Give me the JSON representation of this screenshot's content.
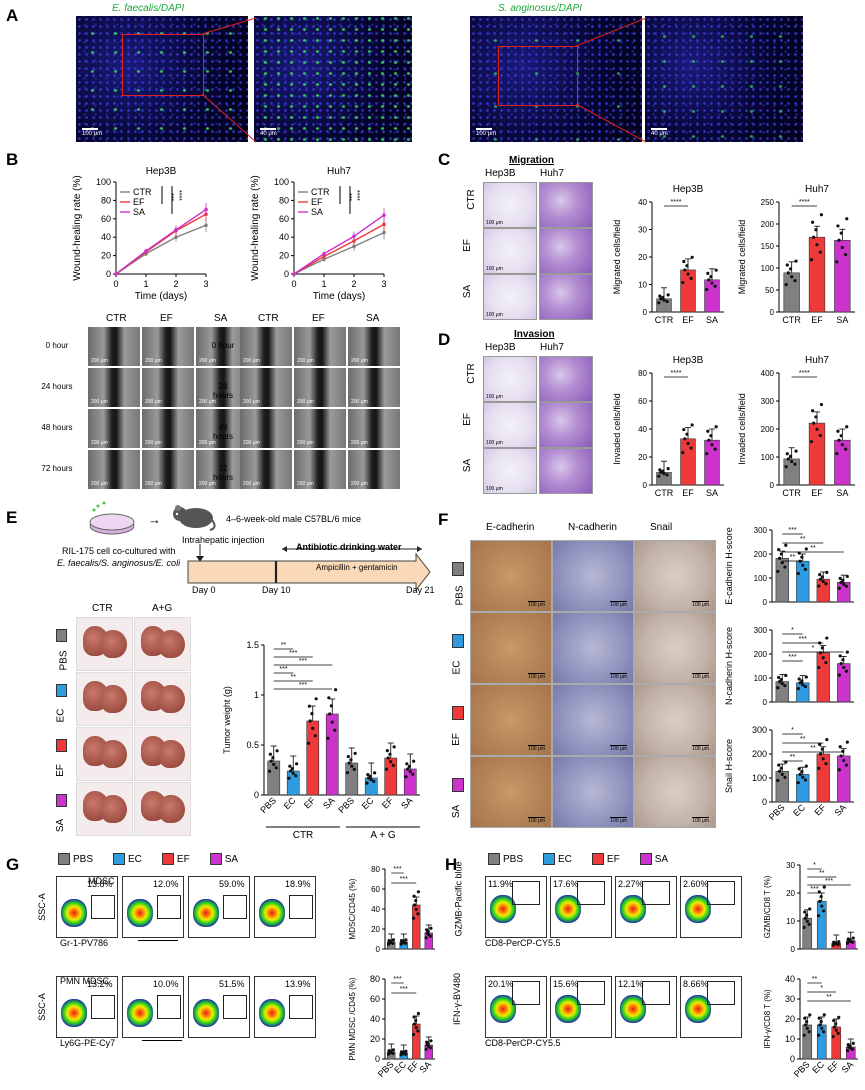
{
  "colors": {
    "ctr": "#808080",
    "ec": "#2f9be0",
    "ef": "#ee3a3a",
    "sa": "#cc33cc",
    "pbs": "#808080"
  },
  "panelA": {
    "letter": "A",
    "left_title": "E. faecalis/DAPI",
    "right_title": "S. anginosus/DAPI",
    "scale_100": "100 μm",
    "scale_40": "40 μm"
  },
  "panelB": {
    "letter": "B",
    "ylabel": "Wound-healing rate (%)",
    "xlabel": "Time (days)",
    "charts": [
      {
        "title": "Hep3B",
        "legend": [
          "CTR",
          "EF",
          "SA"
        ],
        "sig": [
          "***",
          "****"
        ]
      },
      {
        "title": "Huh7",
        "legend": [
          "CTR",
          "EF",
          "SA"
        ],
        "sig": [
          "***",
          "****"
        ]
      }
    ],
    "col_labels": [
      "CTR",
      "EF",
      "SA"
    ],
    "row_labels": [
      "0 hour",
      "24 hours",
      "48 hours",
      "72 hours"
    ],
    "scale": "200 μm"
  },
  "panelC": {
    "letter": "C",
    "heading": "Migration",
    "col_labels": [
      "Hep3B",
      "Huh7"
    ],
    "row_labels": [
      "CTR",
      "EF",
      "SA"
    ],
    "scale": "100 μm",
    "ylabel": "Migrated cells/field"
  },
  "panelD": {
    "letter": "D",
    "heading": "Invasion",
    "col_labels": [
      "Hep3B",
      "Huh7"
    ],
    "row_labels": [
      "CTR",
      "EF",
      "SA"
    ],
    "scale": "100 μm",
    "ylabel": "Invaded cells/field"
  },
  "panelE": {
    "letter": "E",
    "mice": "4–6-week-old male C57BL/6 mice",
    "injection": "Intrahepatic injection",
    "cell1": "RIL-175 cell co-cultured with",
    "cell2": "E. faecalis/S. anginosus/E. coli",
    "water": "Antibiotic drinking water",
    "abx": "Ampicillin + gentamicin",
    "days": [
      "Day 0",
      "Day 10",
      "Day 21"
    ],
    "liver_cols": [
      "CTR",
      "A+G"
    ],
    "liver_rows": [
      "PBS",
      "EC",
      "EF",
      "SA"
    ],
    "ylabel": "Tumor weight (g)",
    "group1": "CTR",
    "group2": "A + G"
  },
  "panelF": {
    "letter": "F",
    "col_labels": [
      "E-cadherin",
      "N-cadherin",
      "Snail"
    ],
    "row_labels": [
      "PBS",
      "EC",
      "EF",
      "SA"
    ],
    "scale": "100 μm"
  },
  "panelG": {
    "letter": "G",
    "legend": [
      "PBS",
      "EC",
      "EF",
      "SA"
    ],
    "gate1": "MDSC",
    "gate2": "PMN MDSC",
    "ssc": "SSC-A",
    "x1": "Gr-1-PV786",
    "x2": "Ly6G-PE-Cy7",
    "pct1": [
      "13.8%",
      "12.0%",
      "59.0%",
      "18.9%"
    ],
    "pct2": [
      "13.2%",
      "10.0%",
      "51.5%",
      "13.9%"
    ]
  },
  "panelH": {
    "letter": "H",
    "legend": [
      "PBS",
      "EC",
      "EF",
      "SA"
    ],
    "y1": "GZMB-Pacific blue",
    "y2": "IFN-γ-BV480",
    "x": "CD8-PerCP-CY5.5",
    "pct1": [
      "11.9%",
      "17.6%",
      "2.27%",
      "2.60%"
    ],
    "pct2": [
      "20.1%",
      "15.6%",
      "12.1%",
      "8.66%"
    ]
  },
  "chart_data": [
    {
      "id": "B-hep3b",
      "type": "line",
      "title": "Hep3B",
      "xlabel": "Time (days)",
      "ylabel": "Wound-healing rate (%)",
      "x": [
        0,
        1,
        2,
        3
      ],
      "xlim": [
        0,
        3
      ],
      "ylim": [
        0,
        100
      ],
      "yticks": [
        0,
        20,
        40,
        60,
        80,
        100
      ],
      "series": [
        {
          "name": "CTR",
          "values": [
            0,
            22,
            40,
            53
          ]
        },
        {
          "name": "EF",
          "values": [
            0,
            24,
            47,
            65
          ]
        },
        {
          "name": "SA",
          "values": [
            0,
            25,
            48,
            70
          ]
        }
      ]
    },
    {
      "id": "B-huh7",
      "type": "line",
      "title": "Huh7",
      "xlabel": "Time (days)",
      "ylabel": "Wound-healing rate (%)",
      "x": [
        0,
        1,
        2,
        3
      ],
      "xlim": [
        0,
        3
      ],
      "ylim": [
        0,
        100
      ],
      "yticks": [
        0,
        20,
        40,
        60,
        80,
        100
      ],
      "series": [
        {
          "name": "CTR",
          "values": [
            0,
            16,
            30,
            45
          ]
        },
        {
          "name": "EF",
          "values": [
            0,
            19,
            36,
            54
          ]
        },
        {
          "name": "SA",
          "values": [
            0,
            22,
            41,
            64
          ]
        }
      ]
    },
    {
      "id": "C-hep3b",
      "type": "bar",
      "title": "Hep3B",
      "ylabel": "Migrated cells/field",
      "categories": [
        "CTR",
        "EF",
        "SA"
      ],
      "values": [
        4.8,
        15.3,
        11.7
      ],
      "ylim": [
        0,
        40
      ],
      "yticks": [
        0,
        10,
        20,
        30,
        40
      ],
      "sig": "****"
    },
    {
      "id": "C-huh7",
      "type": "bar",
      "title": "Huh7",
      "ylabel": "Migrated cells/field",
      "categories": [
        "CTR",
        "EF",
        "SA"
      ],
      "values": [
        89,
        170,
        163
      ],
      "ylim": [
        0,
        250
      ],
      "yticks": [
        0,
        50,
        100,
        150,
        200,
        250
      ],
      "sig": "****"
    },
    {
      "id": "D-hep3b",
      "type": "bar",
      "title": "Hep3B",
      "ylabel": "Invaded cells/field",
      "categories": [
        "CTR",
        "EF",
        "SA"
      ],
      "values": [
        9,
        33,
        32
      ],
      "ylim": [
        0,
        80
      ],
      "yticks": [
        0,
        20,
        40,
        60,
        80
      ],
      "sig": "****"
    },
    {
      "id": "D-huh7",
      "type": "bar",
      "title": "Huh7",
      "ylabel": "Invaded cells/field",
      "categories": [
        "CTR",
        "EF",
        "SA"
      ],
      "values": [
        93,
        221,
        160
      ],
      "ylim": [
        0,
        400
      ],
      "yticks": [
        0,
        100,
        200,
        300,
        400
      ],
      "sig": "****"
    },
    {
      "id": "E-tumor",
      "type": "bar",
      "ylabel": "Tumor weight (g)",
      "categories": [
        "PBS",
        "EC",
        "EF",
        "SA",
        "PBS",
        "EC",
        "EF",
        "SA"
      ],
      "values": [
        0.34,
        0.24,
        0.74,
        0.81,
        0.32,
        0.17,
        0.37,
        0.26
      ],
      "ylim": [
        0,
        1.5
      ],
      "yticks": [
        0,
        0.5,
        1.0,
        1.5
      ],
      "sig": [
        "**",
        "***",
        "***",
        "***",
        "**",
        "***"
      ]
    },
    {
      "id": "F-ecad",
      "type": "bar",
      "ylabel": "E-cadherin H-score",
      "categories": [
        "PBS",
        "EC",
        "EF",
        "SA"
      ],
      "values": [
        182,
        170,
        95,
        82
      ],
      "ylim": [
        0,
        300
      ],
      "yticks": [
        0,
        100,
        200,
        300
      ],
      "sig": [
        "***",
        "**",
        "**",
        "**"
      ]
    },
    {
      "id": "F-ncad",
      "type": "bar",
      "ylabel": "N-cadherin H-score",
      "categories": [
        "PBS",
        "EC",
        "EF",
        "SA"
      ],
      "values": [
        85,
        80,
        205,
        160
      ],
      "ylim": [
        0,
        300
      ],
      "yticks": [
        0,
        100,
        200,
        300
      ],
      "sig": [
        "*",
        "***",
        "*",
        "***"
      ]
    },
    {
      "id": "F-snail",
      "type": "bar",
      "ylabel": "Snail H-score",
      "categories": [
        "PBS",
        "EC",
        "EF",
        "SA"
      ],
      "values": [
        128,
        115,
        200,
        192
      ],
      "ylim": [
        0,
        300
      ],
      "yticks": [
        0,
        100,
        200,
        300
      ],
      "sig": [
        "*",
        "**",
        "**",
        "**"
      ]
    },
    {
      "id": "G-mdsc",
      "type": "bar",
      "ylabel": "MDSC/CD45 (%)",
      "categories": [
        "PBS",
        "EC",
        "EF",
        "SA"
      ],
      "values": [
        7,
        7,
        44,
        16
      ],
      "ylim": [
        0,
        80
      ],
      "yticks": [
        0,
        20,
        40,
        60,
        80
      ],
      "sig": [
        "***",
        "***"
      ]
    },
    {
      "id": "G-pmn",
      "type": "bar",
      "ylabel": "PMN MDSC /CD45 (%)",
      "categories": [
        "PBS",
        "EC",
        "EF",
        "SA"
      ],
      "values": [
        7,
        6,
        35,
        14
      ],
      "ylim": [
        0,
        80
      ],
      "yticks": [
        0,
        20,
        40,
        60,
        80
      ],
      "sig": [
        "***",
        "***"
      ]
    },
    {
      "id": "H-gzmb",
      "type": "bar",
      "ylabel": "GZMB/CD8 T (%)",
      "categories": [
        "PBS",
        "EC",
        "EF",
        "SA"
      ],
      "values": [
        11,
        17,
        2,
        3
      ],
      "ylim": [
        0,
        30
      ],
      "yticks": [
        0,
        10,
        20,
        30
      ],
      "sig": [
        "*",
        "**",
        "***",
        "***"
      ]
    },
    {
      "id": "H-ifng",
      "type": "bar",
      "ylabel": "IFN-γ/CD8 T (%)",
      "categories": [
        "PBS",
        "EC",
        "EF",
        "SA"
      ],
      "values": [
        17,
        17,
        16,
        6
      ],
      "ylim": [
        0,
        40
      ],
      "yticks": [
        0,
        10,
        20,
        30,
        40
      ],
      "sig": [
        "**",
        "*",
        "**"
      ]
    }
  ]
}
